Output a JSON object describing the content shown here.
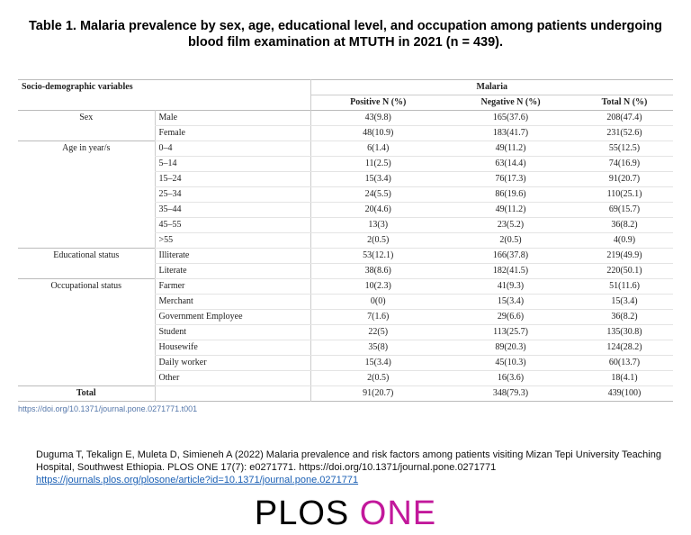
{
  "title": "Table 1. Malaria prevalence by sex, age, educational level, and occupation among patients undergoing blood film examination at MTUTH in 2021 (n = 439).",
  "table": {
    "header": {
      "variables": "Socio-demographic variables",
      "group": "Malaria",
      "columns": [
        "Positive N (%)",
        "Negative N (%)",
        "Total N (%)"
      ]
    },
    "groups": [
      {
        "label": "Sex",
        "rows": [
          [
            "Male",
            "43(9.8)",
            "165(37.6)",
            "208(47.4)"
          ],
          [
            "Female",
            "48(10.9)",
            "183(41.7)",
            "231(52.6)"
          ]
        ]
      },
      {
        "label": "Age in year/s",
        "rows": [
          [
            "0–4",
            "6(1.4)",
            "49(11.2)",
            "55(12.5)"
          ],
          [
            "5–14",
            "11(2.5)",
            "63(14.4)",
            "74(16.9)"
          ],
          [
            "15–24",
            "15(3.4)",
            "76(17.3)",
            "91(20.7)"
          ],
          [
            "25–34",
            "24(5.5)",
            "86(19.6)",
            "110(25.1)"
          ],
          [
            "35–44",
            "20(4.6)",
            "49(11.2)",
            "69(15.7)"
          ],
          [
            "45–55",
            "13(3)",
            "23(5.2)",
            "36(8.2)"
          ],
          [
            ">55",
            "2(0.5)",
            "2(0.5)",
            "4(0.9)"
          ]
        ]
      },
      {
        "label": "Educational status",
        "rows": [
          [
            "Illiterate",
            "53(12.1)",
            "166(37.8)",
            "219(49.9)"
          ],
          [
            "Literate",
            "38(8.6)",
            "182(41.5)",
            "220(50.1)"
          ]
        ]
      },
      {
        "label": "Occupational status",
        "rows": [
          [
            "Farmer",
            "10(2.3)",
            "41(9.3)",
            "51(11.6)"
          ],
          [
            "Merchant",
            "0(0)",
            "15(3.4)",
            "15(3.4)"
          ],
          [
            "Government Employee",
            "7(1.6)",
            "29(6.6)",
            "36(8.2)"
          ],
          [
            "Student",
            "22(5)",
            "113(25.7)",
            "135(30.8)"
          ],
          [
            "Housewife",
            "35(8)",
            "89(20.3)",
            "124(28.2)"
          ],
          [
            "Daily worker",
            "15(3.4)",
            "45(10.3)",
            "60(13.7)"
          ],
          [
            "Other",
            "2(0.5)",
            "16(3.6)",
            "18(4.1)"
          ]
        ]
      }
    ],
    "total": {
      "label": "Total",
      "values": [
        "91(20.7)",
        "348(79.3)",
        "439(100)"
      ]
    }
  },
  "doi": "https://doi.org/10.1371/journal.pone.0271771.t001",
  "citation": "Duguma T, Tekalign E, Muleta D, Simieneh A (2022) Malaria prevalence and risk factors among patients visiting Mizan Tepi University Teaching Hospital, Southwest Ethiopia. PLOS ONE 17(7): e0271771. https://doi.org/10.1371/journal.pone.0271771",
  "link": "https://journals.plos.org/plosone/article?id=10.1371/journal.pone.0271771",
  "logo": [
    "PLOS",
    "ONE"
  ]
}
